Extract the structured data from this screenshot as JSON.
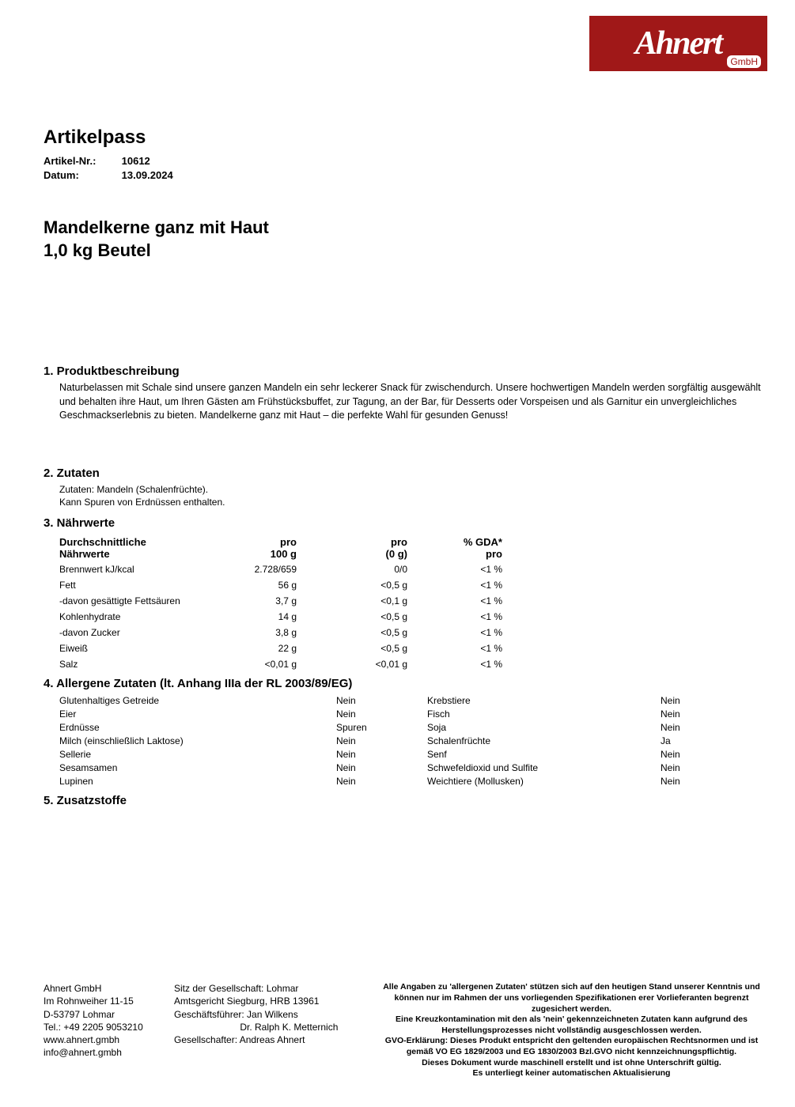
{
  "logo": {
    "text": "Ahnert",
    "sub": "GmbH"
  },
  "doc_title": "Artikelpass",
  "meta": {
    "artikel_label": "Artikel-Nr.:",
    "artikel_value": "10612",
    "datum_label": "Datum:",
    "datum_value": "13.09.2024"
  },
  "product_title_line1": "Mandelkerne ganz mit Haut",
  "product_title_line2": "1,0  kg Beutel",
  "section1": {
    "heading": "1. Produktbeschreibung",
    "text": "Naturbelassen mit Schale sind unsere ganzen Mandeln ein sehr leckerer Snack für zwischendurch. Unsere hochwertigen Mandeln werden sorgfältig ausgewählt und behalten ihre Haut, um Ihren Gästen am Frühstücksbuffet, zur Tagung, an der Bar, für Desserts oder Vorspeisen und als Garnitur ein unvergleichliches Geschmackserlebnis zu bieten. Mandelkerne ganz mit Haut – die perfekte Wahl für gesunden Genuss!"
  },
  "section2": {
    "heading": "2. Zutaten",
    "line1": "Zutaten: Mandeln (Schalenfrüchte).",
    "line2": "Kann Spuren von Erdnüssen enthalten."
  },
  "section3": {
    "heading": "3. Nährwerte",
    "header_col1_l1": "Durchschnittliche",
    "header_col1_l2": "Nährwerte",
    "header_col2_l1": "pro",
    "header_col2_l2": "100 g",
    "header_col3_l1": "pro",
    "header_col3_l2": "(0 g)",
    "header_col4_l1": "% GDA*",
    "header_col4_l2": "pro",
    "rows": [
      {
        "label": "Brennwert kJ/kcal",
        "per100": "2.728/659",
        "perserv": "0/0",
        "gda": "<1 %"
      },
      {
        "label": "Fett",
        "per100": "56 g",
        "perserv": "<0,5 g",
        "gda": "<1 %"
      },
      {
        "label": "-davon gesättigte Fettsäuren",
        "per100": "3,7 g",
        "perserv": "<0,1 g",
        "gda": "<1 %"
      },
      {
        "label": "Kohlenhydrate",
        "per100": "14 g",
        "perserv": "<0,5 g",
        "gda": "<1 %"
      },
      {
        "label": "-davon Zucker",
        "per100": "3,8 g",
        "perserv": "<0,5 g",
        "gda": "<1 %"
      },
      {
        "label": "Eiweiß",
        "per100": "22 g",
        "perserv": "<0,5 g",
        "gda": "<1 %"
      },
      {
        "label": "Salz",
        "per100": "<0,01 g",
        "perserv": "<0,01 g",
        "gda": "<1 %"
      }
    ]
  },
  "section4": {
    "heading": "4. Allergene Zutaten (lt. Anhang IIIa der RL 2003/89/EG)",
    "rows": [
      {
        "n1": "Glutenhaltiges Getreide",
        "v1": "Nein",
        "n2": "Krebstiere",
        "v2": "Nein"
      },
      {
        "n1": "Eier",
        "v1": "Nein",
        "n2": "Fisch",
        "v2": "Nein"
      },
      {
        "n1": "Erdnüsse",
        "v1": "Spuren",
        "n2": "Soja",
        "v2": "Nein"
      },
      {
        "n1": "Milch (einschließlich Laktose)",
        "v1": "Nein",
        "n2": "Schalenfrüchte",
        "v2": "Ja"
      },
      {
        "n1": "Sellerie",
        "v1": "Nein",
        "n2": "Senf",
        "v2": "Nein"
      },
      {
        "n1": "Sesamsamen",
        "v1": "Nein",
        "n2": "Schwefeldioxid und Sulfite",
        "v2": "Nein"
      },
      {
        "n1": "Lupinen",
        "v1": "Nein",
        "n2": "Weichtiere (Mollusken)",
        "v2": "Nein"
      }
    ]
  },
  "section5": {
    "heading": "5. Zusatzstoffe"
  },
  "footer": {
    "col1": {
      "l1": "Ahnert GmbH",
      "l2": "Im Rohnweiher 11-15",
      "l3": "D-53797 Lohmar",
      "l4": "Tel.: +49 2205 9053210",
      "l5": "www.ahnert.gmbh",
      "l6": "info@ahnert.gmbh"
    },
    "col2": {
      "l1": "Sitz der Gesellschaft: Lohmar",
      "l2": "Amtsgericht Siegburg, HRB 13961",
      "l3": "Geschäftsführer: Jan Wilkens",
      "l4": "                         Dr. Ralph K. Metternich",
      "l5": "Gesellschafter: Andreas Ahnert"
    },
    "col3": {
      "l1": "Alle Angaben zu 'allergenen Zutaten' stützen sich auf den heutigen Stand unserer Kenntnis und können nur im Rahmen der uns vorliegenden Spezifikationen erer Vorlieferanten begrenzt zugesichert werden.",
      "l2": "Eine Kreuzkontamination mit den als 'nein' gekennzeichneten Zutaten kann aufgrund des Herstellungsprozesses nicht vollständig ausgeschlossen werden.",
      "l3": "GVO-Erklärung: Dieses Produkt entspricht den geltenden europäischen Rechtsnormen und ist gemäß VO EG 1829/2003 und EG 1830/2003 Bzl.GVO nicht kennzeichnungspflichtig.",
      "l4": "Dieses Dokument wurde maschinell erstellt und ist ohne Unterschrift gültig.",
      "l5": "Es unterliegt keiner automatischen Aktualisierung"
    }
  }
}
